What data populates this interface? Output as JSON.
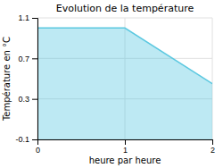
{
  "chart_data": {
    "type": "area",
    "title": "Evolution de la température",
    "xlabel": "heure par heure",
    "ylabel": "Température en °C",
    "x": [
      0,
      1,
      2
    ],
    "values": [
      1.0,
      1.0,
      0.45
    ],
    "color": "#5bc8e0",
    "xlim": [
      0,
      2
    ],
    "ylim": [
      -0.1,
      1.1
    ],
    "xticks": [
      0,
      1,
      2
    ],
    "yticks": [
      -0.1,
      0.3,
      0.7,
      1.1
    ],
    "grid": true
  }
}
